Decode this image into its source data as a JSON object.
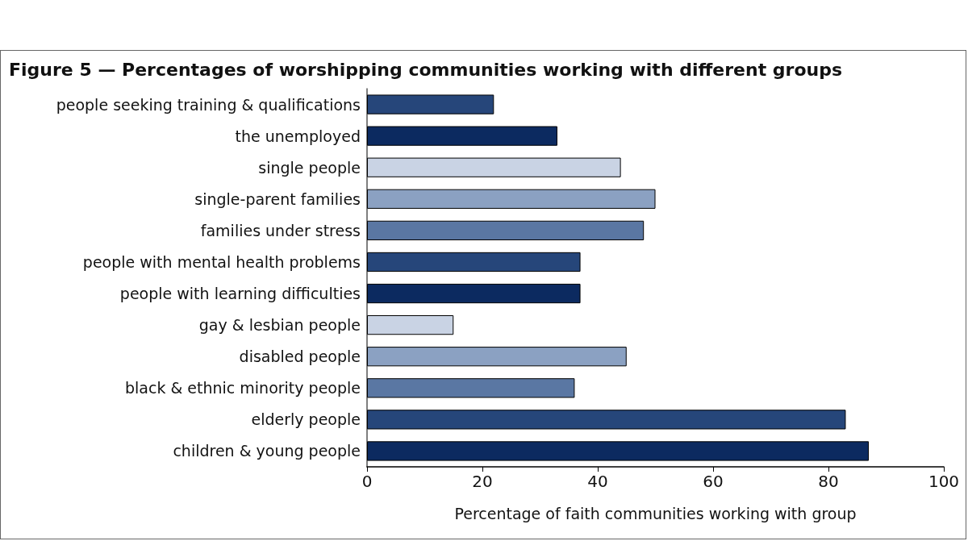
{
  "chart_data": {
    "type": "bar",
    "orientation": "horizontal",
    "title": "Figure 5 — Percentages of worshipping communities working with different groups",
    "xlabel": "Percentage of faith communities working with group",
    "categories": [
      "people seeking training & qualifications",
      "the unemployed",
      "single people",
      "single-parent families",
      "families under stress",
      "people with mental health problems",
      "people with learning difficulties",
      "gay & lesbian people",
      "disabled people",
      "black & ethnic minority people",
      "elderly people",
      "children & young people"
    ],
    "values": [
      22,
      33,
      44,
      50,
      48,
      37,
      37,
      15,
      45,
      36,
      83,
      87
    ],
    "colors": [
      "#26467a",
      "#0c2a60",
      "#c9d3e4",
      "#8ba1c2",
      "#5a77a3",
      "#26467a",
      "#0c2a60",
      "#c9d3e4",
      "#8ba1c2",
      "#5a77a3",
      "#26467a",
      "#0c2a60"
    ],
    "xlim": [
      0,
      100
    ],
    "xticks": [
      0,
      20,
      40,
      60,
      80,
      100
    ],
    "grid": false
  }
}
